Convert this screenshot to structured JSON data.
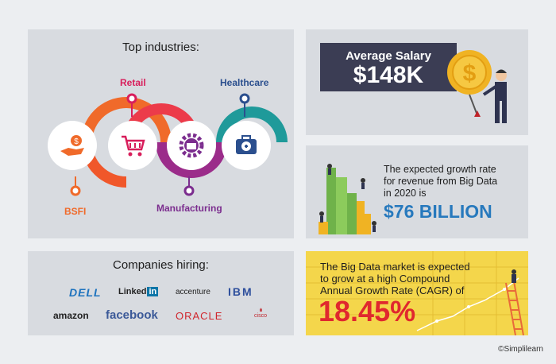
{
  "industries": {
    "title": "Top industries:",
    "items": [
      {
        "label": "BSFI",
        "icon": "hand-coin-icon",
        "color": "#f06a2a"
      },
      {
        "label": "Retail",
        "icon": "shopping-cart-icon",
        "color": "#d81e5b"
      },
      {
        "label": "Manufacturing",
        "icon": "factory-gear-icon",
        "color": "#7b2d8e"
      },
      {
        "label": "Healthcare",
        "icon": "medical-kit-icon",
        "color": "#1f9a9a"
      }
    ]
  },
  "salary": {
    "label": "Average Salary",
    "value": "$148K",
    "icon": "dollar-coin-icon"
  },
  "growth": {
    "lines": [
      "The expected growth rate",
      "for revenue from Big Data",
      "in 2020 is"
    ],
    "value": "$76 BILLION",
    "icon": "money-stacks-icon"
  },
  "companies": {
    "title": "Companies hiring:",
    "logos": [
      "DELL",
      "Linked",
      "in",
      "accenture",
      "IBM",
      "amazon",
      "facebook",
      "ORACLE",
      "cisco"
    ]
  },
  "cagr": {
    "lines": [
      "The Big Data market is expected",
      "to grow at a high Compound",
      "Annual Growth Rate (CAGR) of"
    ],
    "value": "18.45%",
    "icon": "growth-chart-ladder-icon"
  },
  "credit": "©Simplilearn",
  "colors": {
    "panel": "#d8dbe0",
    "salary_box": "#3b3d54",
    "billion": "#2779bd",
    "cagr_bg": "#f4d64b",
    "cagr_value": "#e0282e"
  }
}
